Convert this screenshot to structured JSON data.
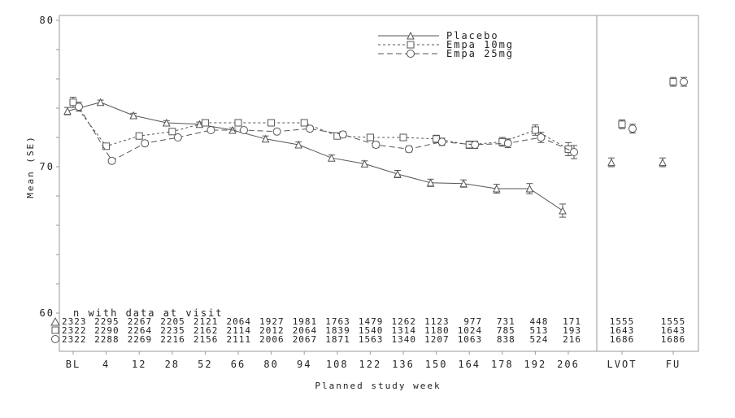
{
  "chart_data": {
    "type": "line",
    "title": "",
    "xlabel": "Planned study week",
    "ylabel": "Mean (SE)",
    "ylim": [
      60,
      80
    ],
    "yticks": [
      60,
      70,
      80
    ],
    "grid": false,
    "legend_position": "top-center",
    "categories": [
      "BL",
      "4",
      "12",
      "28",
      "52",
      "66",
      "80",
      "94",
      "108",
      "122",
      "136",
      "150",
      "164",
      "178",
      "192",
      "206"
    ],
    "extra_categories": [
      "LVOT",
      "FU"
    ],
    "n_table_title": "n with data at visit",
    "series": [
      {
        "name": "Placebo",
        "marker": "triangle",
        "line": "solid",
        "values": [
          73.8,
          74.4,
          73.5,
          73.0,
          72.9,
          72.5,
          71.9,
          71.5,
          70.6,
          70.2,
          69.5,
          68.9,
          68.85,
          68.5,
          68.5,
          67.0
        ],
        "se": [
          0.25,
          0.15,
          0.15,
          0.15,
          0.15,
          0.15,
          0.2,
          0.2,
          0.2,
          0.2,
          0.25,
          0.25,
          0.25,
          0.3,
          0.35,
          0.45
        ],
        "extra_values": [
          70.3,
          70.3
        ],
        "extra_se": [
          0.3,
          0.3
        ],
        "n": [
          "2323",
          "2295",
          "2267",
          "2205",
          "2121",
          "2064",
          "1927",
          "1981",
          "1763",
          "1479",
          "1262",
          "1123",
          "977",
          "731",
          "448",
          "171"
        ],
        "extra_n": [
          "1555",
          "1555"
        ]
      },
      {
        "name": "Empa 10mg",
        "marker": "square",
        "line": "short-dash",
        "values": [
          74.4,
          71.4,
          72.1,
          72.4,
          73.0,
          73.0,
          73.0,
          73.0,
          72.1,
          72.0,
          72.0,
          71.9,
          71.5,
          71.7,
          72.5,
          71.2
        ],
        "se": [
          0.35,
          0.15,
          0.15,
          0.15,
          0.15,
          0.15,
          0.15,
          0.15,
          0.2,
          0.2,
          0.2,
          0.25,
          0.25,
          0.3,
          0.35,
          0.45
        ],
        "extra_values": [
          72.9,
          75.8
        ],
        "extra_se": [
          0.3,
          0.3
        ],
        "n": [
          "2322",
          "2290",
          "2264",
          "2235",
          "2162",
          "2114",
          "2012",
          "2064",
          "1839",
          "1540",
          "1314",
          "1180",
          "1024",
          "785",
          "513",
          "193"
        ],
        "extra_n": [
          "1643",
          "1643"
        ]
      },
      {
        "name": "Empa 25mg",
        "marker": "circle",
        "line": "long-dash",
        "values": [
          74.1,
          70.4,
          71.6,
          72.0,
          72.5,
          72.5,
          72.4,
          72.6,
          72.2,
          71.5,
          71.2,
          71.7,
          71.5,
          71.6,
          72.0,
          71.0
        ],
        "se": [
          0.3,
          0.15,
          0.15,
          0.15,
          0.15,
          0.15,
          0.15,
          0.15,
          0.2,
          0.2,
          0.2,
          0.25,
          0.25,
          0.3,
          0.35,
          0.45
        ],
        "extra_values": [
          72.6,
          75.8
        ],
        "extra_se": [
          0.3,
          0.3
        ],
        "n": [
          "2322",
          "2288",
          "2269",
          "2216",
          "2156",
          "2111",
          "2006",
          "2067",
          "1871",
          "1563",
          "1340",
          "1207",
          "1063",
          "838",
          "524",
          "216"
        ],
        "extra_n": [
          "1686",
          "1686"
        ]
      }
    ],
    "color": "#555555"
  }
}
